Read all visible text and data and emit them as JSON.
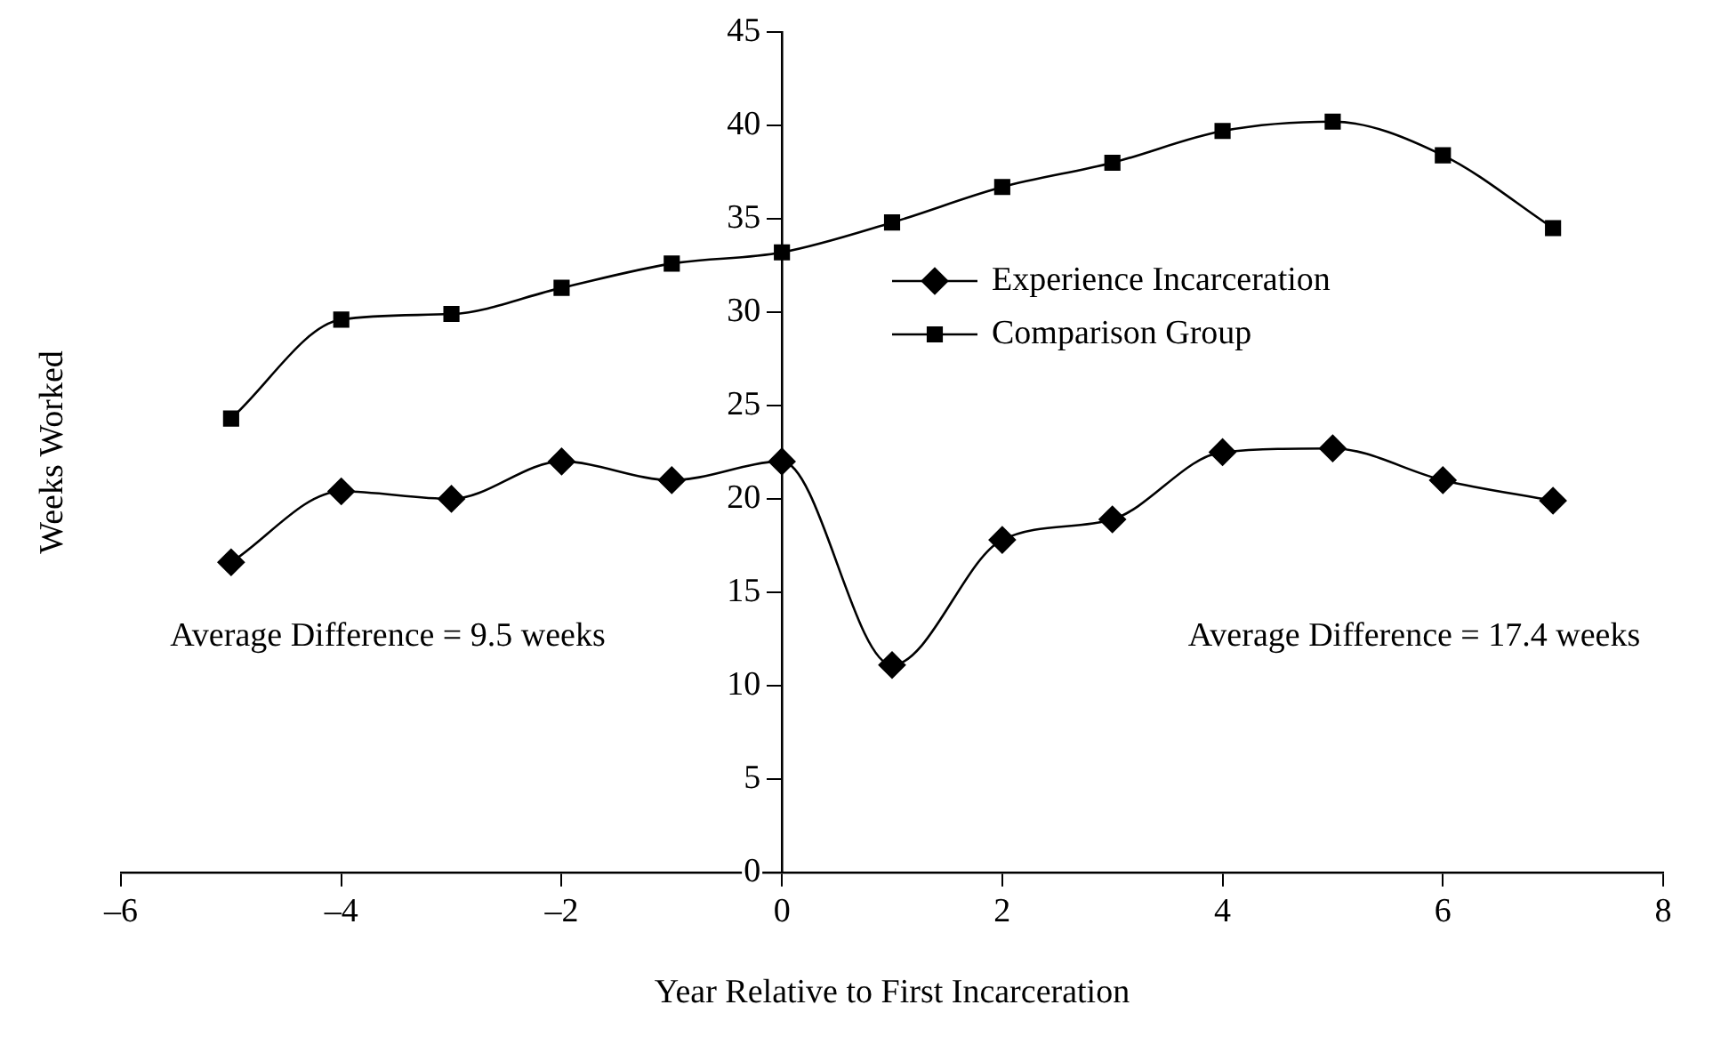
{
  "chart_data": {
    "type": "line",
    "xlabel": "Year Relative to First Incarceration",
    "ylabel": "Weeks Worked",
    "x": [
      -5,
      -4,
      -3,
      -2,
      -1,
      0,
      1,
      2,
      3,
      4,
      5,
      6,
      7
    ],
    "series": [
      {
        "name": "Experience Incarceration",
        "color": "#000000",
        "marker": "diamond",
        "values": [
          16.6,
          20.4,
          20.0,
          22.0,
          21.0,
          22.0,
          11.1,
          17.8,
          18.9,
          22.5,
          22.7,
          21.0,
          19.9
        ]
      },
      {
        "name": "Comparison Group",
        "color": "#000000",
        "marker": "square",
        "values": [
          24.3,
          29.6,
          29.9,
          31.3,
          32.6,
          33.2,
          34.8,
          36.7,
          38.0,
          39.7,
          40.2,
          38.4,
          34.5
        ]
      }
    ],
    "xlim": [
      -6,
      8
    ],
    "xticks": [
      {
        "value": -6,
        "label": "–6"
      },
      {
        "value": -4,
        "label": "–4"
      },
      {
        "value": -2,
        "label": "–2"
      },
      0,
      2,
      4,
      6,
      8
    ],
    "ylim": [
      0,
      45
    ],
    "yticks": [
      0,
      5,
      10,
      15,
      20,
      25,
      30,
      35,
      40,
      45
    ],
    "grid": false,
    "legend": "top right",
    "line_style": "solid",
    "annotations": [
      "Average Difference = 9.5 weeks",
      "Average Difference = 17.4 weeks"
    ]
  }
}
